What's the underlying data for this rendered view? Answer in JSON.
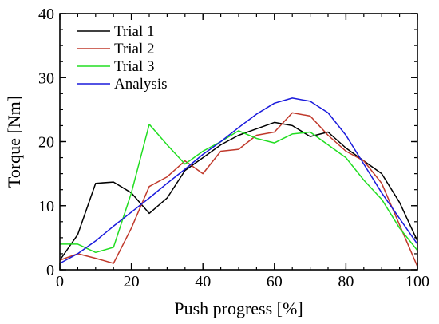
{
  "chart_data": {
    "type": "line",
    "title": "",
    "xlabel": "Push progress [%]",
    "ylabel": "Torque [Nm]",
    "xlim": [
      0,
      100
    ],
    "ylim": [
      0,
      40
    ],
    "xticks": [
      0,
      20,
      40,
      60,
      80,
      100
    ],
    "yticks": [
      0,
      10,
      20,
      30,
      40
    ],
    "minor_tick_step_x": 5,
    "minor_tick_step_y": 2.5,
    "grid": false,
    "legend_position": "top-left",
    "series": [
      {
        "name": "Trial 1",
        "color": "#000000",
        "x": [
          0,
          5,
          10,
          15,
          20,
          25,
          30,
          35,
          40,
          45,
          50,
          55,
          60,
          65,
          70,
          75,
          80,
          85,
          90,
          95,
          100
        ],
        "y": [
          1.5,
          5.5,
          13.5,
          13.7,
          12.0,
          8.8,
          11.2,
          15.5,
          17.5,
          19.5,
          21.0,
          22.0,
          23.0,
          22.5,
          20.8,
          21.5,
          19.0,
          17.0,
          15.0,
          10.5,
          4.5
        ]
      },
      {
        "name": "Trial 2",
        "color": "#c0392b",
        "x": [
          0,
          5,
          10,
          15,
          20,
          25,
          30,
          35,
          40,
          45,
          50,
          55,
          60,
          65,
          70,
          75,
          80,
          85,
          90,
          95,
          100
        ],
        "y": [
          1.5,
          2.5,
          1.8,
          1.0,
          6.5,
          13.0,
          14.5,
          17.0,
          15.0,
          18.5,
          18.8,
          21.0,
          21.5,
          24.5,
          24.0,
          21.0,
          18.5,
          17.0,
          13.5,
          7.0,
          0.5
        ]
      },
      {
        "name": "Trial 3",
        "color": "#22dd22",
        "x": [
          0,
          5,
          10,
          15,
          20,
          25,
          30,
          35,
          40,
          45,
          50,
          55,
          60,
          65,
          70,
          75,
          80,
          85,
          90,
          95,
          100
        ],
        "y": [
          4.0,
          4.0,
          2.7,
          3.5,
          12.0,
          22.7,
          19.5,
          16.5,
          18.5,
          20.0,
          21.7,
          20.5,
          19.8,
          21.2,
          21.5,
          19.5,
          17.5,
          14.0,
          11.0,
          6.5,
          3.0
        ]
      },
      {
        "name": "Analysis",
        "color": "#1a1adc",
        "x": [
          0,
          5,
          10,
          15,
          20,
          25,
          30,
          35,
          40,
          45,
          50,
          55,
          60,
          65,
          70,
          75,
          80,
          85,
          90,
          95,
          100
        ],
        "y": [
          1.0,
          2.5,
          4.5,
          6.8,
          9.0,
          11.2,
          13.5,
          15.7,
          18.0,
          20.0,
          22.2,
          24.3,
          26.0,
          26.8,
          26.3,
          24.5,
          21.0,
          16.5,
          12.0,
          8.0,
          4.0
        ]
      }
    ]
  }
}
